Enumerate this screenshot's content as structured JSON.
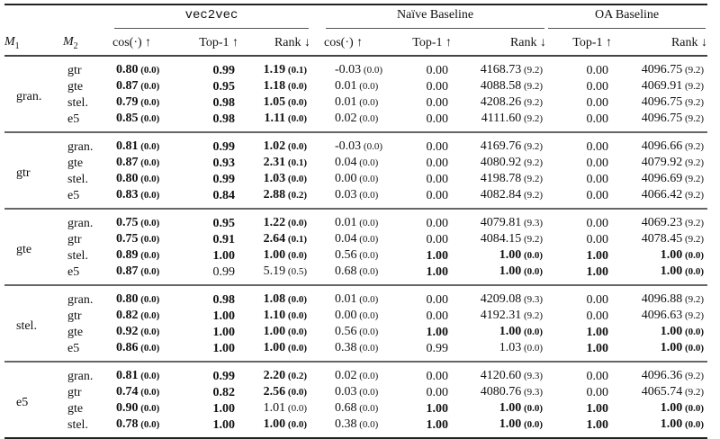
{
  "header": {
    "groups": [
      "vec2vec",
      "Naïve Baseline",
      "OA Baseline"
    ],
    "m1": "M",
    "m1_sub": "1",
    "m2": "M",
    "m2_sub": "2",
    "columns": [
      "cos(·) ↑",
      "Top-1 ↑",
      "Rank ↓",
      "cos(·) ↑",
      "Top-1 ↑",
      "Rank ↓",
      "Top-1 ↑",
      "Rank ↓"
    ]
  },
  "groups": [
    {
      "m1": "gran.",
      "rows": [
        {
          "m2": "gtr",
          "cells": [
            [
              "0.80",
              "(0.0)",
              1
            ],
            [
              "0.99",
              "",
              1
            ],
            [
              "1.19",
              "(0.1)",
              1
            ],
            [
              "-0.03",
              "(0.0)",
              0
            ],
            [
              "0.00",
              "",
              0
            ],
            [
              "4168.73",
              "(9.2)",
              0
            ],
            [
              "0.00",
              "",
              0
            ],
            [
              "4096.75",
              "(9.2)",
              0
            ]
          ]
        },
        {
          "m2": "gte",
          "cells": [
            [
              "0.87",
              "(0.0)",
              1
            ],
            [
              "0.95",
              "",
              1
            ],
            [
              "1.18",
              "(0.0)",
              1
            ],
            [
              "0.01",
              "(0.0)",
              0
            ],
            [
              "0.00",
              "",
              0
            ],
            [
              "4088.58",
              "(9.2)",
              0
            ],
            [
              "0.00",
              "",
              0
            ],
            [
              "4069.91",
              "(9.2)",
              0
            ]
          ]
        },
        {
          "m2": "stel.",
          "cells": [
            [
              "0.79",
              "(0.0)",
              1
            ],
            [
              "0.98",
              "",
              1
            ],
            [
              "1.05",
              "(0.0)",
              1
            ],
            [
              "0.01",
              "(0.0)",
              0
            ],
            [
              "0.00",
              "",
              0
            ],
            [
              "4208.26",
              "(9.2)",
              0
            ],
            [
              "0.00",
              "",
              0
            ],
            [
              "4096.75",
              "(9.2)",
              0
            ]
          ]
        },
        {
          "m2": "e5",
          "cells": [
            [
              "0.85",
              "(0.0)",
              1
            ],
            [
              "0.98",
              "",
              1
            ],
            [
              "1.11",
              "(0.0)",
              1
            ],
            [
              "0.02",
              "(0.0)",
              0
            ],
            [
              "0.00",
              "",
              0
            ],
            [
              "4111.60",
              "(9.2)",
              0
            ],
            [
              "0.00",
              "",
              0
            ],
            [
              "4096.75",
              "(9.2)",
              0
            ]
          ]
        }
      ]
    },
    {
      "m1": "gtr",
      "rows": [
        {
          "m2": "gran.",
          "cells": [
            [
              "0.81",
              "(0.0)",
              1
            ],
            [
              "0.99",
              "",
              1
            ],
            [
              "1.02",
              "(0.0)",
              1
            ],
            [
              "-0.03",
              "(0.0)",
              0
            ],
            [
              "0.00",
              "",
              0
            ],
            [
              "4169.76",
              "(9.2)",
              0
            ],
            [
              "0.00",
              "",
              0
            ],
            [
              "4096.66",
              "(9.2)",
              0
            ]
          ]
        },
        {
          "m2": "gte",
          "cells": [
            [
              "0.87",
              "(0.0)",
              1
            ],
            [
              "0.93",
              "",
              1
            ],
            [
              "2.31",
              "(0.1)",
              1
            ],
            [
              "0.04",
              "(0.0)",
              0
            ],
            [
              "0.00",
              "",
              0
            ],
            [
              "4080.92",
              "(9.2)",
              0
            ],
            [
              "0.00",
              "",
              0
            ],
            [
              "4079.92",
              "(9.2)",
              0
            ]
          ]
        },
        {
          "m2": "stel.",
          "cells": [
            [
              "0.80",
              "(0.0)",
              1
            ],
            [
              "0.99",
              "",
              1
            ],
            [
              "1.03",
              "(0.0)",
              1
            ],
            [
              "0.00",
              "(0.0)",
              0
            ],
            [
              "0.00",
              "",
              0
            ],
            [
              "4198.78",
              "(9.2)",
              0
            ],
            [
              "0.00",
              "",
              0
            ],
            [
              "4096.69",
              "(9.2)",
              0
            ]
          ]
        },
        {
          "m2": "e5",
          "cells": [
            [
              "0.83",
              "(0.0)",
              1
            ],
            [
              "0.84",
              "",
              1
            ],
            [
              "2.88",
              "(0.2)",
              1
            ],
            [
              "0.03",
              "(0.0)",
              0
            ],
            [
              "0.00",
              "",
              0
            ],
            [
              "4082.84",
              "(9.2)",
              0
            ],
            [
              "0.00",
              "",
              0
            ],
            [
              "4066.42",
              "(9.2)",
              0
            ]
          ]
        }
      ]
    },
    {
      "m1": "gte",
      "rows": [
        {
          "m2": "gran.",
          "cells": [
            [
              "0.75",
              "(0.0)",
              1
            ],
            [
              "0.95",
              "",
              1
            ],
            [
              "1.22",
              "(0.0)",
              1
            ],
            [
              "0.01",
              "(0.0)",
              0
            ],
            [
              "0.00",
              "",
              0
            ],
            [
              "4079.81",
              "(9.3)",
              0
            ],
            [
              "0.00",
              "",
              0
            ],
            [
              "4069.23",
              "(9.2)",
              0
            ]
          ]
        },
        {
          "m2": "gtr",
          "cells": [
            [
              "0.75",
              "(0.0)",
              1
            ],
            [
              "0.91",
              "",
              1
            ],
            [
              "2.64",
              "(0.1)",
              1
            ],
            [
              "0.04",
              "(0.0)",
              0
            ],
            [
              "0.00",
              "",
              0
            ],
            [
              "4084.15",
              "(9.2)",
              0
            ],
            [
              "0.00",
              "",
              0
            ],
            [
              "4078.45",
              "(9.2)",
              0
            ]
          ]
        },
        {
          "m2": "stel.",
          "cells": [
            [
              "0.89",
              "(0.0)",
              1
            ],
            [
              "1.00",
              "",
              1
            ],
            [
              "1.00",
              "(0.0)",
              1
            ],
            [
              "0.56",
              "(0.0)",
              0
            ],
            [
              "1.00",
              "",
              1
            ],
            [
              "1.00",
              "(0.0)",
              1
            ],
            [
              "1.00",
              "",
              1
            ],
            [
              "1.00",
              "(0.0)",
              1
            ]
          ]
        },
        {
          "m2": "e5",
          "cells": [
            [
              "0.87",
              "(0.0)",
              1
            ],
            [
              "0.99",
              "",
              0
            ],
            [
              "5.19",
              "(0.5)",
              0
            ],
            [
              "0.68",
              "(0.0)",
              0
            ],
            [
              "1.00",
              "",
              1
            ],
            [
              "1.00",
              "(0.0)",
              1
            ],
            [
              "1.00",
              "",
              1
            ],
            [
              "1.00",
              "(0.0)",
              1
            ]
          ]
        }
      ]
    },
    {
      "m1": "stel.",
      "rows": [
        {
          "m2": "gran.",
          "cells": [
            [
              "0.80",
              "(0.0)",
              1
            ],
            [
              "0.98",
              "",
              1
            ],
            [
              "1.08",
              "(0.0)",
              1
            ],
            [
              "0.01",
              "(0.0)",
              0
            ],
            [
              "0.00",
              "",
              0
            ],
            [
              "4209.08",
              "(9.3)",
              0
            ],
            [
              "0.00",
              "",
              0
            ],
            [
              "4096.88",
              "(9.2)",
              0
            ]
          ]
        },
        {
          "m2": "gtr",
          "cells": [
            [
              "0.82",
              "(0.0)",
              1
            ],
            [
              "1.00",
              "",
              1
            ],
            [
              "1.10",
              "(0.0)",
              1
            ],
            [
              "0.00",
              "(0.0)",
              0
            ],
            [
              "0.00",
              "",
              0
            ],
            [
              "4192.31",
              "(9.2)",
              0
            ],
            [
              "0.00",
              "",
              0
            ],
            [
              "4096.63",
              "(9.2)",
              0
            ]
          ]
        },
        {
          "m2": "gte",
          "cells": [
            [
              "0.92",
              "(0.0)",
              1
            ],
            [
              "1.00",
              "",
              1
            ],
            [
              "1.00",
              "(0.0)",
              1
            ],
            [
              "0.56",
              "(0.0)",
              0
            ],
            [
              "1.00",
              "",
              1
            ],
            [
              "1.00",
              "(0.0)",
              1
            ],
            [
              "1.00",
              "",
              1
            ],
            [
              "1.00",
              "(0.0)",
              1
            ]
          ]
        },
        {
          "m2": "e5",
          "cells": [
            [
              "0.86",
              "(0.0)",
              1
            ],
            [
              "1.00",
              "",
              1
            ],
            [
              "1.00",
              "(0.0)",
              1
            ],
            [
              "0.38",
              "(0.0)",
              0
            ],
            [
              "0.99",
              "",
              0
            ],
            [
              "1.03",
              "(0.0)",
              0
            ],
            [
              "1.00",
              "",
              1
            ],
            [
              "1.00",
              "(0.0)",
              1
            ]
          ]
        }
      ]
    },
    {
      "m1": "e5",
      "rows": [
        {
          "m2": "gran.",
          "cells": [
            [
              "0.81",
              "(0.0)",
              1
            ],
            [
              "0.99",
              "",
              1
            ],
            [
              "2.20",
              "(0.2)",
              1
            ],
            [
              "0.02",
              "(0.0)",
              0
            ],
            [
              "0.00",
              "",
              0
            ],
            [
              "4120.60",
              "(9.3)",
              0
            ],
            [
              "0.00",
              "",
              0
            ],
            [
              "4096.36",
              "(9.2)",
              0
            ]
          ]
        },
        {
          "m2": "gtr",
          "cells": [
            [
              "0.74",
              "(0.0)",
              1
            ],
            [
              "0.82",
              "",
              1
            ],
            [
              "2.56",
              "(0.0)",
              1
            ],
            [
              "0.03",
              "(0.0)",
              0
            ],
            [
              "0.00",
              "",
              0
            ],
            [
              "4080.76",
              "(9.3)",
              0
            ],
            [
              "0.00",
              "",
              0
            ],
            [
              "4065.74",
              "(9.2)",
              0
            ]
          ]
        },
        {
          "m2": "gte",
          "cells": [
            [
              "0.90",
              "(0.0)",
              1
            ],
            [
              "1.00",
              "",
              1
            ],
            [
              "1.01",
              "(0.0)",
              0
            ],
            [
              "0.68",
              "(0.0)",
              0
            ],
            [
              "1.00",
              "",
              1
            ],
            [
              "1.00",
              "(0.0)",
              1
            ],
            [
              "1.00",
              "",
              1
            ],
            [
              "1.00",
              "(0.0)",
              1
            ]
          ]
        },
        {
          "m2": "stel.",
          "cells": [
            [
              "0.78",
              "(0.0)",
              1
            ],
            [
              "1.00",
              "",
              1
            ],
            [
              "1.00",
              "(0.0)",
              1
            ],
            [
              "0.38",
              "(0.0)",
              0
            ],
            [
              "1.00",
              "",
              1
            ],
            [
              "1.00",
              "(0.0)",
              1
            ],
            [
              "1.00",
              "",
              1
            ],
            [
              "1.00",
              "(0.0)",
              1
            ]
          ]
        }
      ]
    }
  ]
}
